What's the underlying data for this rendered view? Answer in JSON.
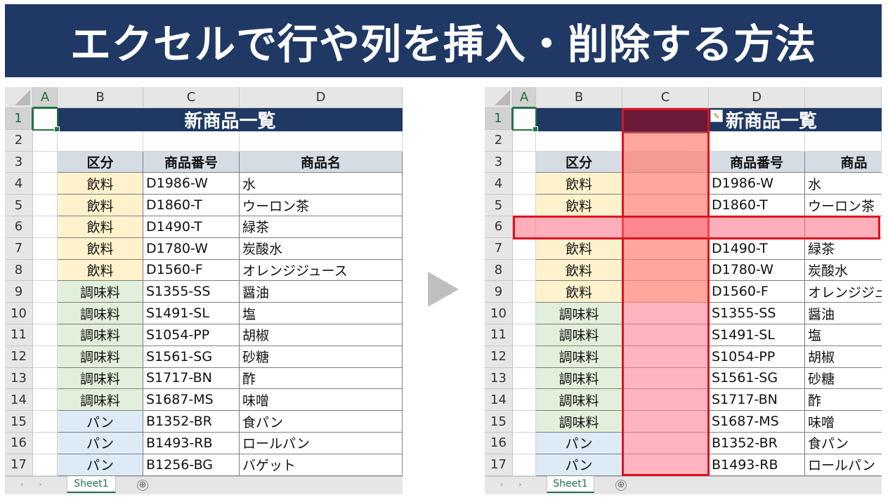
{
  "banner": {
    "title": "エクセルで行や列を挿入・削除する方法"
  },
  "colors": {
    "banner": "#203864",
    "header_fill": "#d6dce4",
    "beverage": "#fff2cc",
    "seasoning": "#e2efda",
    "bread": "#ddebf7",
    "highlight_border": "#e01020"
  },
  "left_sheet": {
    "columns": [
      "A",
      "B",
      "C",
      "D"
    ],
    "rows": [
      "1",
      "2",
      "3",
      "4",
      "5",
      "6",
      "7",
      "8",
      "9",
      "10",
      "11",
      "12",
      "13",
      "14",
      "15",
      "16",
      "17"
    ],
    "title": "新商品一覧",
    "headers": [
      "区分",
      "商品番号",
      "商品名"
    ],
    "data": [
      {
        "cat": "飲料",
        "code": "D1986-W",
        "name": "水",
        "group": "bev"
      },
      {
        "cat": "飲料",
        "code": "D1860-T",
        "name": "ウーロン茶",
        "group": "bev"
      },
      {
        "cat": "飲料",
        "code": "D1490-T",
        "name": "緑茶",
        "group": "bev"
      },
      {
        "cat": "飲料",
        "code": "D1780-W",
        "name": "炭酸水",
        "group": "bev"
      },
      {
        "cat": "飲料",
        "code": "D1560-F",
        "name": "オレンジジュース",
        "group": "bev"
      },
      {
        "cat": "調味料",
        "code": "S1355-SS",
        "name": "醤油",
        "group": "sea"
      },
      {
        "cat": "調味料",
        "code": "S1491-SL",
        "name": "塩",
        "group": "sea"
      },
      {
        "cat": "調味料",
        "code": "S1054-PP",
        "name": "胡椒",
        "group": "sea"
      },
      {
        "cat": "調味料",
        "code": "S1561-SG",
        "name": "砂糖",
        "group": "sea"
      },
      {
        "cat": "調味料",
        "code": "S1717-BN",
        "name": "酢",
        "group": "sea"
      },
      {
        "cat": "調味料",
        "code": "S1687-MS",
        "name": "味噌",
        "group": "sea"
      },
      {
        "cat": "パン",
        "code": "B1352-BR",
        "name": "食パン",
        "group": "bre"
      },
      {
        "cat": "パン",
        "code": "B1493-RB",
        "name": "ロールパン",
        "group": "bre"
      },
      {
        "cat": "パン",
        "code": "B1256-BG",
        "name": "バゲット",
        "group": "bre"
      }
    ],
    "tab": "Sheet1",
    "add_sheet": "⊕"
  },
  "right_sheet": {
    "columns": [
      "A",
      "B",
      "C",
      "D",
      ""
    ],
    "rows": [
      "1",
      "2",
      "3",
      "4",
      "5",
      "6",
      "7",
      "8",
      "9",
      "10",
      "11",
      "12",
      "13",
      "14",
      "15",
      "16",
      "17"
    ],
    "title": "新商品一覧",
    "headers": [
      "区分",
      "",
      "商品番号",
      "商品名"
    ],
    "header_d_visible": "商品",
    "data": [
      {
        "cat": "飲料",
        "code": "D1986-W",
        "name": "水",
        "group": "bev"
      },
      {
        "cat": "飲料",
        "code": "D1860-T",
        "name": "ウーロン茶",
        "group": "bev"
      },
      {
        "cat": "",
        "code": "",
        "name": "",
        "group": "none"
      },
      {
        "cat": "飲料",
        "code": "D1490-T",
        "name": "緑茶",
        "group": "bev"
      },
      {
        "cat": "飲料",
        "code": "D1780-W",
        "name": "炭酸水",
        "group": "bev"
      },
      {
        "cat": "飲料",
        "code": "D1560-F",
        "name": "オレンジジュース",
        "group": "bev"
      },
      {
        "cat": "調味料",
        "code": "S1355-SS",
        "name": "醤油",
        "group": "sea"
      },
      {
        "cat": "調味料",
        "code": "S1491-SL",
        "name": "塩",
        "group": "sea"
      },
      {
        "cat": "調味料",
        "code": "S1054-PP",
        "name": "胡椒",
        "group": "sea"
      },
      {
        "cat": "調味料",
        "code": "S1561-SG",
        "name": "砂糖",
        "group": "sea"
      },
      {
        "cat": "調味料",
        "code": "S1717-BN",
        "name": "酢",
        "group": "sea"
      },
      {
        "cat": "調味料",
        "code": "S1687-MS",
        "name": "味噌",
        "group": "sea"
      },
      {
        "cat": "パン",
        "code": "B1352-BR",
        "name": "食パン",
        "group": "bre"
      },
      {
        "cat": "パン",
        "code": "B1493-RB",
        "name": "ロールパン",
        "group": "bre"
      }
    ],
    "tab": "Sheet1",
    "add_sheet": "⊕",
    "paste_icon": "paste-options-icon"
  }
}
